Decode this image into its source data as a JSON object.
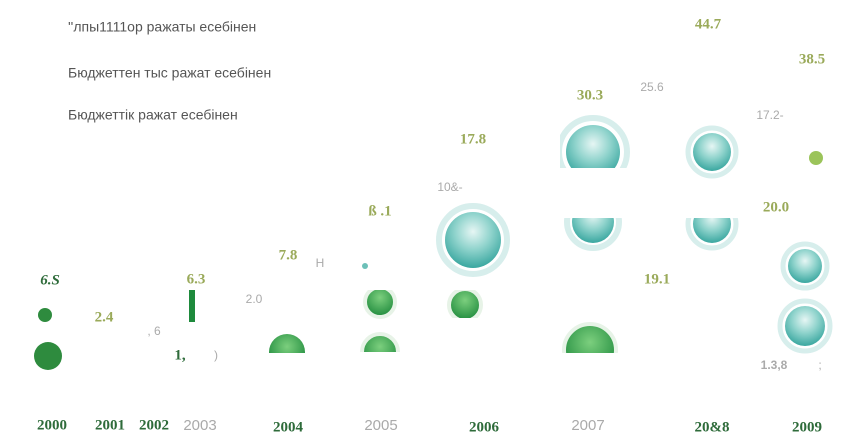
{
  "legend": [
    "''лпы1111ор ражаты есебінен",
    "Бюджеттен тыс ражат есебінен",
    "Бюджеттік ражат есебінен"
  ],
  "years": [
    "2000",
    "2001",
    "2002",
    "2003",
    "2004",
    "2005",
    "2006",
    "2007",
    "20&8",
    "2009"
  ],
  "labels": [
    "44.7",
    "38.5",
    "25.6",
    "30.3",
    "17.2-",
    "17.8",
    "10&-",
    "20.0",
    "ß .1",
    "7.8",
    "Н",
    "6.3",
    "19.1",
    "6.S",
    "2.4",
    "2.0",
    ", 6",
    "1.3,8",
    ";",
    "1,",
    ")"
  ]
}
